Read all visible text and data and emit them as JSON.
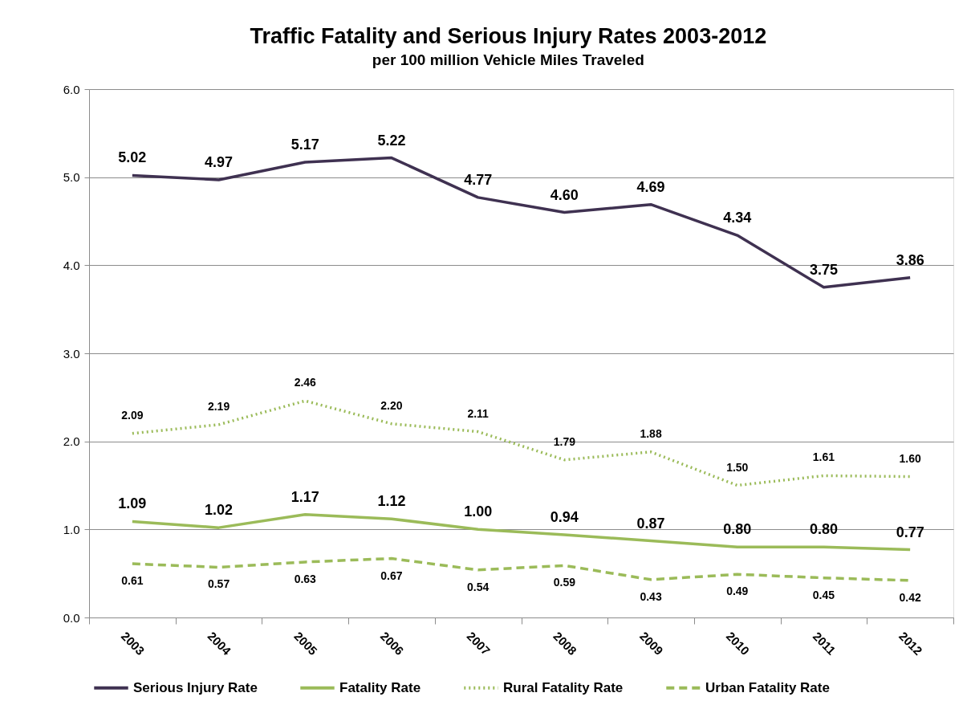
{
  "chart_data": {
    "type": "line",
    "title": "Traffic Fatality and Serious Injury Rates 2003-2012",
    "subtitle": "per 100 million Vehicle Miles Traveled",
    "categories": [
      "2003",
      "2004",
      "2005",
      "2006",
      "2007",
      "2008",
      "2009",
      "2010",
      "2011",
      "2012"
    ],
    "series": [
      {
        "name": "Serious Injury Rate",
        "color": "#3f3151",
        "line_style": "solid",
        "values": [
          5.02,
          4.97,
          5.17,
          5.22,
          4.77,
          4.6,
          4.69,
          4.34,
          3.75,
          3.86
        ],
        "value_labels": [
          "5.02",
          "4.97",
          "5.17",
          "5.22",
          "4.77",
          "4.60",
          "4.69",
          "4.34",
          "3.75",
          "3.86"
        ]
      },
      {
        "name": "Fatality Rate",
        "color": "#9bbb59",
        "line_style": "solid",
        "values": [
          1.09,
          1.02,
          1.17,
          1.12,
          1.0,
          0.94,
          0.87,
          0.8,
          0.8,
          0.77
        ],
        "value_labels": [
          "1.09",
          "1.02",
          "1.17",
          "1.12",
          "1.00",
          "0.94",
          "0.87",
          "0.80",
          "0.80",
          "0.77"
        ]
      },
      {
        "name": "Rural Fatality Rate",
        "color": "#9bbb59",
        "line_style": "dotted",
        "values": [
          2.09,
          2.19,
          2.46,
          2.2,
          2.11,
          1.79,
          1.88,
          1.5,
          1.61,
          1.6
        ],
        "value_labels": [
          "2.09",
          "2.19",
          "2.46",
          "2.20",
          "2.11",
          "1.79",
          "1.88",
          "1.50",
          "1.61",
          "1.60"
        ]
      },
      {
        "name": "Urban Fatality Rate",
        "color": "#9bbb59",
        "line_style": "dashed",
        "values": [
          0.61,
          0.57,
          0.63,
          0.67,
          0.54,
          0.59,
          0.43,
          0.49,
          0.45,
          0.42
        ],
        "value_labels": [
          "0.61",
          "0.57",
          "0.63",
          "0.67",
          "0.54",
          "0.59",
          "0.43",
          "0.49",
          "0.45",
          "0.42"
        ]
      }
    ],
    "ylim": [
      0,
      6
    ],
    "yticks": [
      {
        "value": 0,
        "label": "0.0"
      },
      {
        "value": 1,
        "label": "1.0"
      },
      {
        "value": 2,
        "label": "2.0"
      },
      {
        "value": 3,
        "label": "3.0"
      },
      {
        "value": 4,
        "label": "4.0"
      },
      {
        "value": 5,
        "label": "5.0"
      },
      {
        "value": 6,
        "label": "6.0"
      }
    ],
    "grid": "y",
    "legend": "bottom",
    "marker": "none"
  }
}
